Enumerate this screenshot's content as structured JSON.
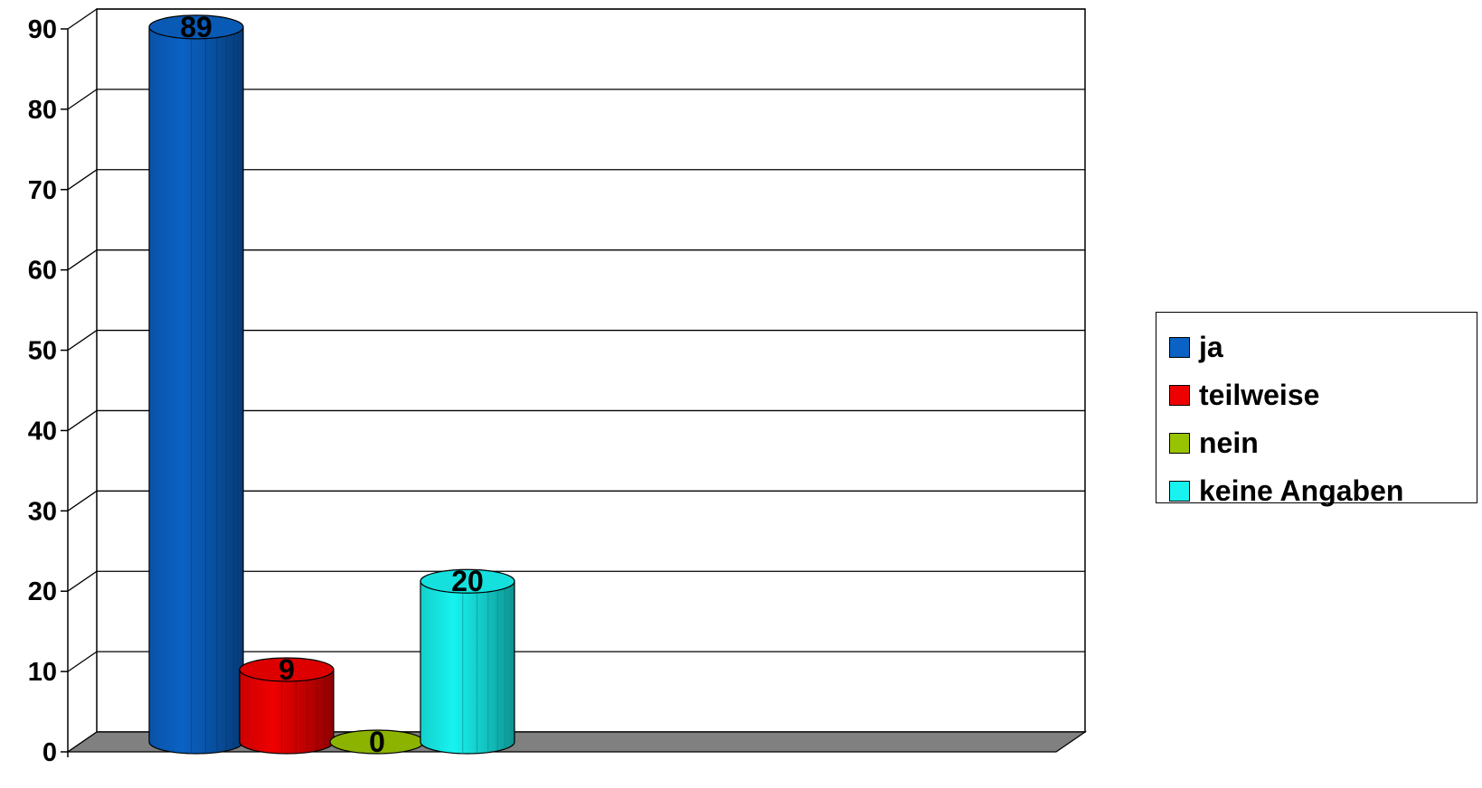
{
  "chart_data": {
    "type": "bar",
    "categories": [
      "ja",
      "teilweise",
      "nein",
      "keine Angaben"
    ],
    "values": [
      89,
      9,
      0,
      20
    ],
    "colors": [
      "#0a62c4",
      "#ef0000",
      "#98c300",
      "#18f3f0"
    ],
    "ylim": [
      0,
      90
    ],
    "yticks": [
      0,
      10,
      20,
      30,
      40,
      50,
      60,
      70,
      80,
      90
    ],
    "grid": true,
    "legend_position": "right",
    "bar_shape": "3d-cylinder",
    "title": "",
    "xlabel": "",
    "ylabel": ""
  },
  "legend": {
    "items": [
      {
        "label": "ja",
        "color": "#0a62c4"
      },
      {
        "label": "teilweise",
        "color": "#ef0000"
      },
      {
        "label": "nein",
        "color": "#98c300"
      },
      {
        "label": "keine Angaben",
        "color": "#18f3f0"
      }
    ]
  }
}
